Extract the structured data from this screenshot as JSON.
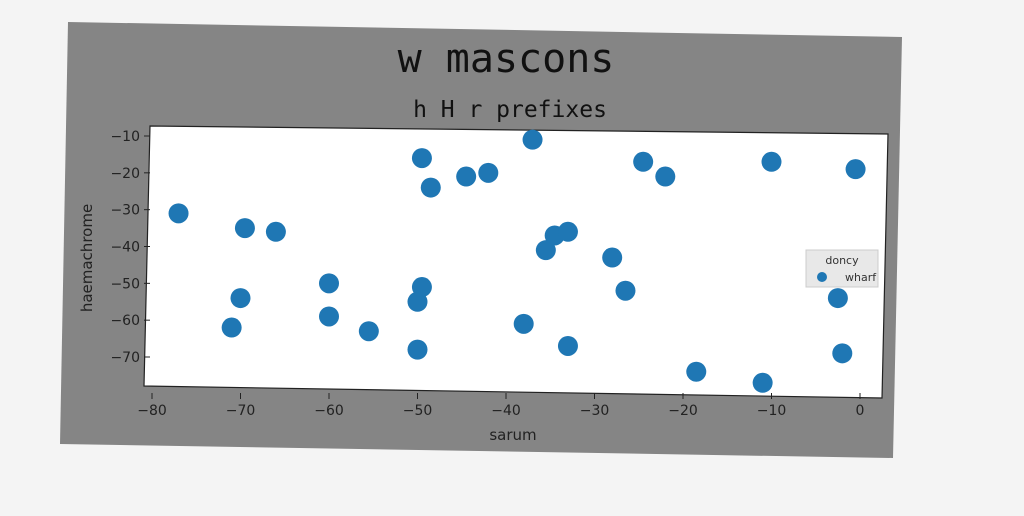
{
  "chart_data": {
    "type": "scatter",
    "title": "w mascons",
    "subtitle": "h H r prefixes",
    "xlabel": "sarum",
    "ylabel": "haemachrome",
    "xlim": [
      -81,
      3
    ],
    "ylim": [
      -79,
      -8
    ],
    "xticks": [
      -80,
      -70,
      -60,
      -50,
      -40,
      -30,
      -20,
      -10,
      0
    ],
    "yticks": [
      -10,
      -20,
      -30,
      -40,
      -50,
      -60,
      -70
    ],
    "grid": false,
    "legend": {
      "title": "doncy",
      "position": "right",
      "entries": [
        "wharf"
      ]
    },
    "series": [
      {
        "name": "wharf",
        "color": "#1f77b4",
        "points": [
          {
            "x": -77,
            "y": -31
          },
          {
            "x": -71,
            "y": -62
          },
          {
            "x": -70,
            "y": -54
          },
          {
            "x": -69.5,
            "y": -35
          },
          {
            "x": -66,
            "y": -36
          },
          {
            "x": -60,
            "y": -50
          },
          {
            "x": -60,
            "y": -59
          },
          {
            "x": -55.5,
            "y": -63
          },
          {
            "x": -50,
            "y": -68
          },
          {
            "x": -50,
            "y": -55
          },
          {
            "x": -49.5,
            "y": -51
          },
          {
            "x": -49.5,
            "y": -16
          },
          {
            "x": -48.5,
            "y": -24
          },
          {
            "x": -44.5,
            "y": -21
          },
          {
            "x": -42,
            "y": -20
          },
          {
            "x": -38,
            "y": -61
          },
          {
            "x": -37,
            "y": -11
          },
          {
            "x": -35.5,
            "y": -41
          },
          {
            "x": -34.5,
            "y": -37
          },
          {
            "x": -33,
            "y": -36
          },
          {
            "x": -33,
            "y": -67
          },
          {
            "x": -28,
            "y": -43
          },
          {
            "x": -26.5,
            "y": -52
          },
          {
            "x": -24.5,
            "y": -17
          },
          {
            "x": -22,
            "y": -21
          },
          {
            "x": -18.5,
            "y": -74
          },
          {
            "x": -11,
            "y": -77
          },
          {
            "x": -10,
            "y": -17
          },
          {
            "x": -2.5,
            "y": -54
          },
          {
            "x": -2,
            "y": -69
          },
          {
            "x": -0.5,
            "y": -19
          }
        ]
      }
    ]
  }
}
